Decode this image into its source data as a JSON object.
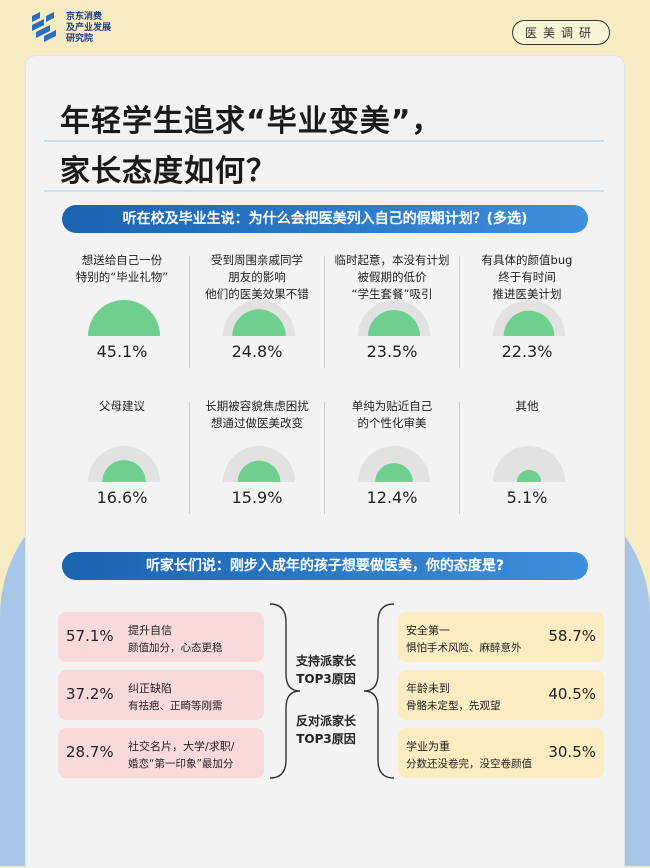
{
  "header": {
    "org_line1": "京东消费",
    "org_line2": "及产业发展",
    "org_line3": "研究院",
    "tag": "医美调研"
  },
  "title": {
    "line1": "年轻学生追求“毕业变美”，",
    "line2": "家长态度如何？"
  },
  "section1": {
    "banner": "听在校及毕业生说：为什么会把医美列入自己的假期计划？(多选)"
  },
  "section2": {
    "banner": "听家长们说：刚步入成年的孩子想要做医美，你的态度是?"
  },
  "colors": {
    "gauge_fill": "#6fcf8f",
    "gauge_track": "#e2e2e2",
    "banner": "#2a78c8",
    "support_box": "#f9dada",
    "oppose_box": "#fbecc2"
  },
  "chart_data": [
    {
      "type": "bar",
      "title": "听在校及毕业生说：为什么会把医美列入自己的假期计划？(多选)",
      "categories": [
        "想送给自己一份\n特别的“毕业礼物”",
        "受到周围亲戚同学\n朋友的影响\n他们的医美效果不错",
        "临时起意，本没有计划\n被假期的低价\n“学生套餐”吸引",
        "有具体的颜值bug\n终于有时间\n推进医美计划",
        "父母建议",
        "长期被容貌焦虑困扰\n想通过做医美改变",
        "单纯为贴近自己\n的个性化审美",
        "其他"
      ],
      "values": [
        45.1,
        24.8,
        23.5,
        22.3,
        16.6,
        15.9,
        12.4,
        5.1
      ],
      "value_labels": [
        "45.1%",
        "24.8%",
        "23.5%",
        "22.3%",
        "16.6%",
        "15.9%",
        "12.4%",
        "5.1%"
      ],
      "unit": "%"
    },
    {
      "type": "table",
      "title": "听家长们说：刚步入成年的孩子想要做医美，你的态度是?",
      "support": {
        "label_line1": "支持派家长",
        "label_line2": "TOP3原因",
        "items": [
          {
            "value": 57.1,
            "value_label": "57.1%",
            "title": "提升自信",
            "desc": "颜值加分，心态更稳"
          },
          {
            "value": 37.2,
            "value_label": "37.2%",
            "title": "纠正缺陷",
            "desc": "有祛疤、正畸等刚需"
          },
          {
            "value": 28.7,
            "value_label": "28.7%",
            "title": "社交名片，大学/求职/",
            "desc": "婚恋“第一印象”最加分"
          }
        ]
      },
      "oppose": {
        "label_line1": "反对派家长",
        "label_line2": "TOP3原因",
        "items": [
          {
            "value": 58.7,
            "value_label": "58.7%",
            "title": "安全第一",
            "desc": "惧怕手术风险、麻醉意外"
          },
          {
            "value": 40.5,
            "value_label": "40.5%",
            "title": "年龄未到",
            "desc": "骨骼未定型，先观望"
          },
          {
            "value": 30.5,
            "value_label": "30.5%",
            "title": "学业为重",
            "desc": "分数还没卷完，没空卷颜值"
          }
        ]
      }
    }
  ]
}
